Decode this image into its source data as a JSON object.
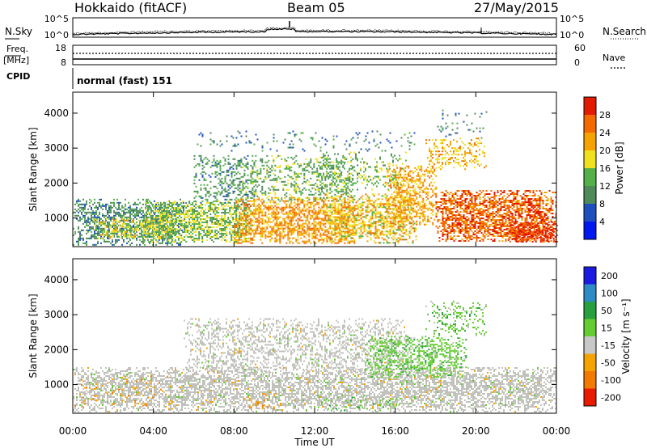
{
  "header": {
    "station": "Hokkaido (fitACF)",
    "beam": "Beam 05",
    "date": "27/May/2015"
  },
  "strip": {
    "nsky_label": "N.Sky",
    "nsearch_label": "N.Search",
    "freq_label_1": "Freq.",
    "freq_label_2": "[MHz]",
    "nave_label": "Nave",
    "cpid_label": "CPID",
    "cpid_value": "normal (fast) 151",
    "noise_ticks": [
      "10^5",
      "10^0"
    ],
    "freq_ticks": [
      "18",
      "8"
    ],
    "nave_ticks": [
      "60",
      "0"
    ]
  },
  "colors": {
    "power_scale": [
      "#0018f0",
      "#1f4fbf",
      "#4f8a5a",
      "#55b04a",
      "#f0e11f",
      "#f5a300",
      "#f36a00",
      "#e21a00"
    ],
    "velocity_scale": [
      "#1a1ae0",
      "#2e8bc6",
      "#28a040",
      "#66cc33",
      "#c8c8c8",
      "#f5a300",
      "#f27a00",
      "#e81a00"
    ],
    "velocity_gray": "#c2c2bc"
  },
  "chart_data": [
    {
      "type": "heatmap",
      "name": "power",
      "xlabel": "Time UT",
      "ylabel": "Slant Range [km]",
      "x_ticks": [
        "00:00",
        "04:00",
        "08:00",
        "12:00",
        "16:00",
        "20:00",
        "00:00"
      ],
      "x_range_hours": [
        0,
        24
      ],
      "y_ticks": [
        1000,
        2000,
        3000,
        4000
      ],
      "y_range_km": [
        180,
        4600
      ],
      "colorbar_label": "Power [dB]",
      "colorbar_ticks": [
        4,
        8,
        12,
        16,
        20,
        24,
        28
      ],
      "colorbar_range": [
        0,
        32
      ],
      "regions": [
        {
          "t0": 0.0,
          "t1": 5.5,
          "r0": 250,
          "r1": 1550,
          "v0": 6,
          "v1": 14,
          "density": 0.55
        },
        {
          "t0": 1.0,
          "t1": 5.0,
          "r0": 400,
          "r1": 1000,
          "v0": 14,
          "v1": 22,
          "density": 0.45
        },
        {
          "t0": 3.5,
          "t1": 9.0,
          "r0": 300,
          "r1": 1500,
          "v0": 10,
          "v1": 20,
          "density": 0.6
        },
        {
          "t0": 6.0,
          "t1": 9.0,
          "r0": 1400,
          "r1": 2800,
          "v0": 6,
          "v1": 16,
          "density": 0.35
        },
        {
          "t0": 8.0,
          "t1": 14.0,
          "r0": 300,
          "r1": 1600,
          "v0": 18,
          "v1": 28,
          "density": 0.6
        },
        {
          "t0": 8.0,
          "t1": 14.0,
          "r0": 1500,
          "r1": 2800,
          "v0": 8,
          "v1": 18,
          "density": 0.3
        },
        {
          "t0": 12.5,
          "t1": 17.0,
          "r0": 300,
          "r1": 1700,
          "v0": 14,
          "v1": 26,
          "density": 0.5
        },
        {
          "t0": 12.0,
          "t1": 16.5,
          "r0": 1800,
          "r1": 2900,
          "v0": 10,
          "v1": 18,
          "density": 0.25
        },
        {
          "t0": 15.5,
          "t1": 18.0,
          "r0": 800,
          "r1": 2500,
          "v0": 18,
          "v1": 26,
          "density": 0.55
        },
        {
          "t0": 18.0,
          "t1": 24.0,
          "r0": 350,
          "r1": 1800,
          "v0": 22,
          "v1": 31,
          "density": 0.65
        },
        {
          "t0": 21.5,
          "t1": 24.0,
          "r0": 300,
          "r1": 900,
          "v0": 26,
          "v1": 32,
          "density": 0.85
        },
        {
          "t0": 17.5,
          "t1": 20.5,
          "r0": 2400,
          "r1": 3300,
          "v0": 16,
          "v1": 26,
          "density": 0.35
        },
        {
          "t0": 18.0,
          "t1": 20.5,
          "r0": 3300,
          "r1": 4100,
          "v0": 6,
          "v1": 14,
          "density": 0.12
        },
        {
          "t0": 6.0,
          "t1": 17.0,
          "r0": 2900,
          "r1": 3500,
          "v0": 4,
          "v1": 14,
          "density": 0.1
        }
      ]
    },
    {
      "type": "heatmap",
      "name": "velocity",
      "xlabel": "Time UT",
      "ylabel": "Slant Range [km]",
      "x_ticks": [
        "00:00",
        "04:00",
        "08:00",
        "12:00",
        "16:00",
        "20:00",
        "00:00"
      ],
      "x_range_hours": [
        0,
        24
      ],
      "y_ticks": [
        1000,
        2000,
        3000,
        4000
      ],
      "y_range_km": [
        180,
        4600
      ],
      "colorbar_label": "Velocity [m s⁻¹]",
      "colorbar_ticks": [
        200,
        100,
        50,
        15,
        -15,
        -50,
        -100,
        -200
      ],
      "regions": [
        {
          "t0": 0.0,
          "t1": 24.0,
          "r0": 250,
          "r1": 1500,
          "kind": "gray",
          "density": 0.6
        },
        {
          "t0": 5.5,
          "t1": 16.5,
          "r0": 1300,
          "r1": 2900,
          "kind": "gray",
          "density": 0.35
        },
        {
          "t0": 14.5,
          "t1": 19.5,
          "r0": 1200,
          "r1": 2400,
          "kind": "green",
          "density": 0.45
        },
        {
          "t0": 17.5,
          "t1": 20.5,
          "r0": 2400,
          "r1": 3400,
          "kind": "green",
          "density": 0.3
        },
        {
          "t0": 8.5,
          "t1": 10.5,
          "r0": 300,
          "r1": 800,
          "kind": "orange",
          "density": 0.15
        },
        {
          "t0": 12.0,
          "t1": 16.5,
          "r0": 250,
          "r1": 700,
          "kind": "green",
          "density": 0.15
        },
        {
          "t0": 0.0,
          "t1": 5.0,
          "r0": 300,
          "r1": 1300,
          "kind": "orange",
          "density": 0.06
        }
      ]
    }
  ]
}
